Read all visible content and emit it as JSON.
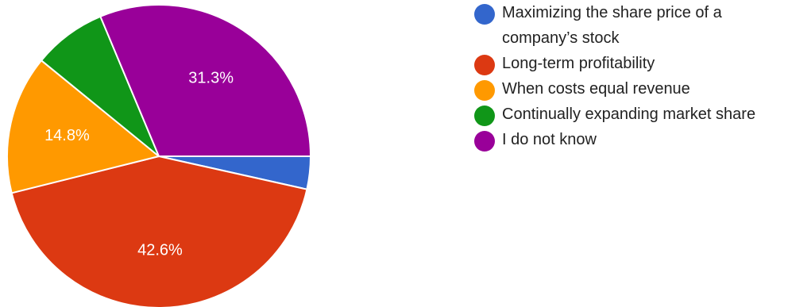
{
  "chart_data": {
    "type": "pie",
    "title": "",
    "slices": [
      {
        "label": "Maximizing the share price of a company’s stock",
        "value": 3.5,
        "percent_label": "",
        "color": "#3366cc"
      },
      {
        "label": "Long-term profitability",
        "value": 42.6,
        "percent_label": "42.6%",
        "color": "#dc3912"
      },
      {
        "label": "When costs equal revenue",
        "value": 14.8,
        "percent_label": "14.8%",
        "color": "#ff9900"
      },
      {
        "label": "Continually expanding market share",
        "value": 7.8,
        "percent_label": "",
        "color": "#109618"
      },
      {
        "label": "I do not know",
        "value": 31.3,
        "percent_label": "31.3%",
        "color": "#990099"
      }
    ],
    "legend_position": "right"
  }
}
